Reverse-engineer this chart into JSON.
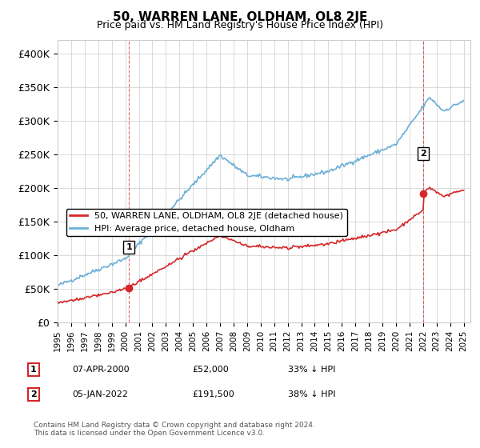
{
  "title": "50, WARREN LANE, OLDHAM, OL8 2JE",
  "subtitle": "Price paid vs. HM Land Registry's House Price Index (HPI)",
  "ylabel_ticks": [
    "£0",
    "£50K",
    "£100K",
    "£150K",
    "£200K",
    "£250K",
    "£300K",
    "£350K",
    "£400K"
  ],
  "ytick_values": [
    0,
    50000,
    100000,
    150000,
    200000,
    250000,
    300000,
    350000,
    400000
  ],
  "ylim": [
    0,
    420000
  ],
  "xlim_start": 1995.0,
  "xlim_end": 2025.5,
  "hpi_color": "#6baed6",
  "price_color": "#d62728",
  "sale1_x": 2000.27,
  "sale1_y": 52000,
  "sale2_x": 2022.02,
  "sale2_y": 191500,
  "annotation1_label": "1",
  "annotation2_label": "2",
  "legend_label_red": "50, WARREN LANE, OLDHAM, OL8 2JE (detached house)",
  "legend_label_blue": "HPI: Average price, detached house, Oldham",
  "note1_num": "1",
  "note1_date": "07-APR-2000",
  "note1_price": "£52,000",
  "note1_pct": "33% ↓ HPI",
  "note2_num": "2",
  "note2_date": "05-JAN-2022",
  "note2_price": "£191,500",
  "note2_pct": "38% ↓ HPI",
  "footer": "Contains HM Land Registry data © Crown copyright and database right 2024.\nThis data is licensed under the Open Government Licence v3.0.",
  "background_color": "#ffffff",
  "grid_color": "#cccccc"
}
